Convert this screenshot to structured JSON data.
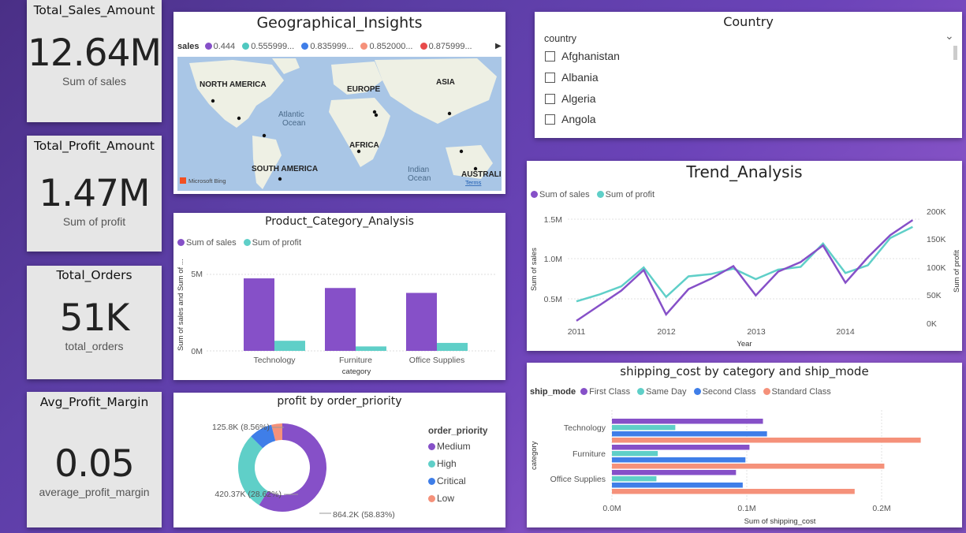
{
  "kpis": [
    {
      "title": "Total_Sales_Amount",
      "value": "12.64M",
      "label": "Sum of sales"
    },
    {
      "title": "Total_Profit_Amount",
      "value": "1.47M",
      "label": "Sum of profit"
    },
    {
      "title": "Total_Orders",
      "value": "51K",
      "label": "total_orders"
    },
    {
      "title": "Avg_Profit_Margin",
      "value": "0.05",
      "label": "average_profit_margin"
    }
  ],
  "geo": {
    "title": "Geographical_Insights",
    "legend_title": "sales",
    "legend_items": [
      "0.444",
      "0.555999...",
      "0.835999...",
      "0.852000...",
      "0.875999..."
    ],
    "legend_colors": [
      "#8650c8",
      "#4fc8c0",
      "#3f7ee8",
      "#f5917a",
      "#e84b4b"
    ],
    "continents": {
      "na": "NORTH AMERICA",
      "eu": "EUROPE",
      "as": "ASIA",
      "af": "AFRICA",
      "sa": "SOUTH AMERICA",
      "au": "AUSTRALI"
    },
    "oceans": {
      "atl1": "Atlantic",
      "atl2": "Ocean",
      "ind1": "Indian",
      "ind2": "Ocean"
    },
    "bing": "Microsoft Bing",
    "terms": "Terms"
  },
  "country": {
    "title": "Country",
    "field": "country",
    "items": [
      "Afghanistan",
      "Albania",
      "Algeria",
      "Angola"
    ]
  },
  "colors": {
    "purple": "#8650c8",
    "teal": "#5fcfc8",
    "blue": "#3f7ee8",
    "salmon": "#f5917a"
  },
  "product": {
    "title": "Product_Category_Analysis",
    "legend": [
      "Sum of sales",
      "Sum of profit"
    ],
    "ylabel": "Sum of sales and Sum of ...",
    "xlabel": "category",
    "y_ticks": [
      "5M",
      "0M"
    ],
    "chart_data": {
      "type": "bar",
      "title": "Product_Category_Analysis",
      "categories": [
        "Technology",
        "Furniture",
        "Office Supplies"
      ],
      "series": [
        {
          "name": "Sum of sales",
          "values": [
            4.74,
            4.11,
            3.79
          ]
        },
        {
          "name": "Sum of profit",
          "values": [
            0.66,
            0.29,
            0.52
          ]
        }
      ],
      "ylim": [
        0,
        5.9
      ]
    }
  },
  "trend": {
    "title": "Trend_Analysis",
    "legend": [
      "Sum of sales",
      "Sum of profit"
    ],
    "xlabel": "Year",
    "ylabel_left": "Sum of sales",
    "ylabel_right": "Sum of profit",
    "y_left_ticks": [
      "1.5M",
      "1.0M",
      "0.5M"
    ],
    "y_right_ticks": [
      "200K",
      "150K",
      "100K",
      "50K",
      "0K"
    ],
    "x_ticks": [
      "2011",
      "2012",
      "2013",
      "2014"
    ],
    "chart_data": {
      "type": "line",
      "title": "Trend_Analysis",
      "x": [
        2011.0,
        2011.25,
        2011.5,
        2011.75,
        2012.0,
        2012.25,
        2012.5,
        2012.75,
        2013.0,
        2013.25,
        2013.5,
        2013.75,
        2014.0,
        2014.25,
        2014.5,
        2014.75
      ],
      "series": [
        {
          "name": "Sum of sales",
          "axis": "left",
          "values": [
            0.22,
            0.41,
            0.6,
            0.86,
            0.3,
            0.62,
            0.75,
            0.91,
            0.54,
            0.84,
            0.96,
            1.17,
            0.7,
            1.02,
            1.3,
            1.49
          ]
        },
        {
          "name": "Sum of profit",
          "axis": "right",
          "values": [
            38000,
            50000,
            65000,
            99000,
            46000,
            83000,
            87000,
            97000,
            78000,
            95000,
            100000,
            142000,
            89000,
            103000,
            152000,
            172000
          ]
        }
      ],
      "ylim_left": [
        0,
        1.6
      ],
      "ylim_right": [
        0,
        200000
      ]
    }
  },
  "priority": {
    "title": "profit by order_priority",
    "legend_title": "order_priority",
    "items": [
      "Medium",
      "High",
      "Critical",
      "Low"
    ],
    "labels": [
      "864.2K (58.83%)",
      "420.37K (28.62%)",
      "125.8K (8.56%)"
    ],
    "chart_data": {
      "type": "pie",
      "title": "profit by order_priority",
      "categories": [
        "Medium",
        "High",
        "Critical",
        "Low"
      ],
      "values": [
        864200,
        420370,
        125800,
        58700
      ],
      "percentages": [
        58.83,
        28.62,
        8.56,
        3.99
      ]
    }
  },
  "shipping": {
    "title": "shipping_cost by category and ship_mode",
    "legend_title": "ship_mode",
    "legend": [
      "First Class",
      "Same Day",
      "Second Class",
      "Standard Class"
    ],
    "xlabel": "Sum of shipping_cost",
    "ylabel": "category",
    "x_ticks": [
      "0.0M",
      "0.1M",
      "0.2M"
    ],
    "chart_data": {
      "type": "bar",
      "orientation": "horizontal",
      "title": "shipping_cost by category and ship_mode",
      "categories": [
        "Technology",
        "Furniture",
        "Office Supplies"
      ],
      "series": [
        {
          "name": "First Class",
          "values": [
            0.112,
            0.102,
            0.092
          ]
        },
        {
          "name": "Same Day",
          "values": [
            0.047,
            0.034,
            0.033
          ]
        },
        {
          "name": "Second Class",
          "values": [
            0.115,
            0.099,
            0.097
          ]
        },
        {
          "name": "Standard Class",
          "values": [
            0.229,
            0.202,
            0.18
          ]
        }
      ],
      "xlim": [
        0,
        0.26
      ]
    }
  }
}
